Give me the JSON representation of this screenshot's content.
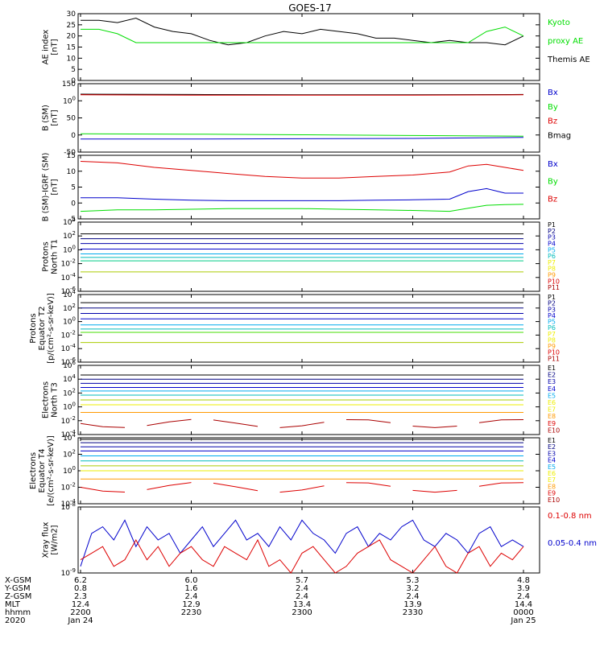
{
  "title": "GOES-17",
  "colors": {
    "black": "#000000",
    "green": "#00dd00",
    "blue": "#0000cc",
    "red": "#dd0000",
    "navy": "#000080",
    "darkblue": "#0000aa",
    "cyan": "#00aaee",
    "teal": "#00bbbb",
    "yellow": "#eeee00",
    "olive": "#aacc00",
    "orange": "#ff9900",
    "darkred": "#aa0000",
    "lime": "#44dd00",
    "greenish": "#00cc88"
  },
  "panels": [
    {
      "id": "ae",
      "ylabel": [
        "AE index",
        "[nT]"
      ],
      "yticks": [
        "0",
        "5",
        "10",
        "15",
        "20",
        "25",
        "30"
      ],
      "ylim": [
        0,
        30
      ],
      "legend": [
        {
          "text": "Kyoto",
          "color": "green"
        },
        {
          "text": "proxy AE",
          "color": "green"
        },
        {
          "text": "Themis AE",
          "color": "black"
        }
      ]
    },
    {
      "id": "bsm",
      "ylabel": [
        "B (SM)",
        "[nT]"
      ],
      "yticks": [
        "-50",
        "0",
        "50",
        "100",
        "150"
      ],
      "ylim": [
        -60,
        150
      ],
      "legend": [
        {
          "text": "Bx",
          "color": "blue"
        },
        {
          "text": "By",
          "color": "green"
        },
        {
          "text": "Bz",
          "color": "red"
        },
        {
          "text": "Bmag",
          "color": "black"
        }
      ]
    },
    {
      "id": "bigrf",
      "ylabel": [
        "B (SM)-IGRF (SM)",
        "[nT]"
      ],
      "yticks": [
        "-5",
        "0",
        "5",
        "10",
        "15"
      ],
      "ylim": [
        -5,
        16
      ],
      "legend": [
        {
          "text": "Bx",
          "color": "blue"
        },
        {
          "text": "By",
          "color": "green"
        },
        {
          "text": "Bz",
          "color": "red"
        }
      ]
    },
    {
      "id": "pt1",
      "ylabel": [
        "Protons",
        "North T1"
      ],
      "yticks": [
        "10-6",
        "10-4",
        "10-2",
        "100",
        "102",
        "104"
      ],
      "ylim": [
        -6,
        4
      ],
      "legend": [
        {
          "text": "P1",
          "color": "black"
        },
        {
          "text": "P2",
          "color": "navy"
        },
        {
          "text": "P3",
          "color": "darkblue"
        },
        {
          "text": "P4",
          "color": "blue"
        },
        {
          "text": "P5",
          "color": "cyan"
        },
        {
          "text": "P6",
          "color": "teal"
        },
        {
          "text": "P7",
          "color": "yellow"
        },
        {
          "text": "P8",
          "color": "yellow"
        },
        {
          "text": "P9",
          "color": "orange"
        },
        {
          "text": "P10",
          "color": "red"
        },
        {
          "text": "P11",
          "color": "darkred"
        }
      ]
    },
    {
      "id": "pt2",
      "ylabel": [
        "Protons",
        "Equator T2",
        "[p/(cm²-s-sr-keV)]"
      ],
      "yticks": [
        "10-6",
        "10-4",
        "10-2",
        "100",
        "102",
        "104"
      ],
      "ylim": [
        -6,
        4
      ],
      "legend": [
        {
          "text": "P1",
          "color": "black"
        },
        {
          "text": "P2",
          "color": "navy"
        },
        {
          "text": "P3",
          "color": "darkblue"
        },
        {
          "text": "P4",
          "color": "blue"
        },
        {
          "text": "P5",
          "color": "cyan"
        },
        {
          "text": "P6",
          "color": "teal"
        },
        {
          "text": "P7",
          "color": "yellow"
        },
        {
          "text": "P8",
          "color": "yellow"
        },
        {
          "text": "P9",
          "color": "orange"
        },
        {
          "text": "P10",
          "color": "red"
        },
        {
          "text": "P11",
          "color": "darkred"
        }
      ]
    },
    {
      "id": "et3",
      "ylabel": [
        "Electrons",
        "North T3"
      ],
      "yticks": [
        "10-4",
        "10-2",
        "100",
        "102",
        "104",
        "106"
      ],
      "ylim": [
        -4,
        6
      ],
      "legend": [
        {
          "text": "E1",
          "color": "black"
        },
        {
          "text": "E2",
          "color": "navy"
        },
        {
          "text": "E3",
          "color": "darkblue"
        },
        {
          "text": "E4",
          "color": "blue"
        },
        {
          "text": "E5",
          "color": "cyan"
        },
        {
          "text": "E6",
          "color": "yellow"
        },
        {
          "text": "E7",
          "color": "yellow"
        },
        {
          "text": "E8",
          "color": "orange"
        },
        {
          "text": "E9",
          "color": "red"
        },
        {
          "text": "E10",
          "color": "darkred"
        }
      ]
    },
    {
      "id": "et4",
      "ylabel": [
        "Electrons",
        "Equator T4",
        "[e/(cm²-s-sr-keV)]"
      ],
      "yticks": [
        "10-4",
        "10-2",
        "100",
        "102",
        "104"
      ],
      "ylim": [
        -4,
        4
      ],
      "legend": [
        {
          "text": "E1",
          "color": "black"
        },
        {
          "text": "E2",
          "color": "navy"
        },
        {
          "text": "E3",
          "color": "darkblue"
        },
        {
          "text": "E4",
          "color": "blue"
        },
        {
          "text": "E5",
          "color": "cyan"
        },
        {
          "text": "E6",
          "color": "yellow"
        },
        {
          "text": "E7",
          "color": "yellow"
        },
        {
          "text": "E8",
          "color": "orange"
        },
        {
          "text": "E9",
          "color": "red"
        },
        {
          "text": "E10",
          "color": "darkred"
        }
      ]
    },
    {
      "id": "xray",
      "ylabel": [
        "Xray flux",
        "[W/m2]"
      ],
      "yticks": [
        "10-9",
        "10-8"
      ],
      "ylim": [
        -9,
        -8
      ],
      "legend": [
        {
          "text": "0.1-0.8 nm",
          "color": "red"
        },
        {
          "text": "0.05-0.4 nm",
          "color": "blue"
        }
      ]
    }
  ],
  "footer": {
    "row_labels": [
      "X-GSM",
      "Y-GSM",
      "Z-GSM",
      "MLT",
      "hhmm",
      "2020"
    ],
    "columns": [
      [
        "6.2",
        "0.8",
        "2.3",
        "12.4",
        "2200",
        "Jan 24"
      ],
      [
        "6.0",
        "1.6",
        "2.4",
        "12.9",
        "2230",
        ""
      ],
      [
        "5.7",
        "2.4",
        "2.4",
        "13.4",
        "2300",
        ""
      ],
      [
        "5.3",
        "3.2",
        "2.4",
        "13.9",
        "2330",
        ""
      ],
      [
        "4.8",
        "3.9",
        "2.4",
        "14.4",
        "0000",
        "Jan 25"
      ]
    ]
  },
  "chart_data": [
    {
      "type": "line",
      "panel": "ae",
      "x_minutes": [
        0,
        5,
        10,
        15,
        20,
        25,
        30,
        35,
        40,
        45,
        50,
        55,
        60,
        65,
        70,
        75,
        80,
        85,
        90,
        95,
        100,
        105,
        110,
        115,
        120
      ],
      "series": [
        {
          "name": "Themis AE",
          "color": "black",
          "values": [
            27,
            27,
            26,
            28,
            24,
            22,
            21,
            18,
            16,
            17,
            20,
            22,
            21,
            23,
            22,
            21,
            19,
            19,
            18,
            17,
            18,
            17,
            17,
            16,
            20
          ]
        },
        {
          "name": "Kyoto",
          "color": "green",
          "values": [
            23,
            23,
            21,
            17,
            17,
            17,
            17,
            17,
            17,
            17,
            17,
            17,
            17,
            17,
            17,
            17,
            17,
            17,
            17,
            17,
            17,
            17,
            22,
            24,
            20
          ]
        }
      ],
      "ylim": [
        0,
        30
      ]
    },
    {
      "type": "line",
      "panel": "bsm",
      "x_minutes": [
        0,
        30,
        60,
        90,
        120
      ],
      "series": [
        {
          "name": "Bmag",
          "color": "black",
          "values": [
            118,
            117,
            116,
            116,
            117
          ]
        },
        {
          "name": "Bz",
          "color": "red",
          "values": [
            116,
            115,
            115,
            115,
            116
          ]
        },
        {
          "name": "By",
          "color": "green",
          "values": [
            -4,
            -5,
            -7,
            -9,
            -11
          ]
        },
        {
          "name": "Bx",
          "color": "blue",
          "values": [
            -20,
            -20,
            -19,
            -18,
            -15
          ]
        }
      ],
      "ylim": [
        -60,
        150
      ]
    },
    {
      "type": "line",
      "panel": "bigrf",
      "x_minutes": [
        0,
        10,
        20,
        30,
        40,
        50,
        60,
        70,
        80,
        90,
        100,
        105,
        110,
        115,
        120
      ],
      "series": [
        {
          "name": "Bz",
          "color": "red",
          "values": [
            14,
            13.5,
            12,
            11,
            10,
            9,
            8.5,
            8.5,
            9,
            9.5,
            10.5,
            12.5,
            13,
            12,
            11
          ]
        },
        {
          "name": "Bx",
          "color": "blue",
          "values": [
            2,
            2,
            1.5,
            1.2,
            1,
            1,
            1,
            1,
            1.2,
            1.3,
            1.5,
            4,
            5,
            3.5,
            3.5
          ]
        },
        {
          "name": "By",
          "color": "green",
          "values": [
            -2.5,
            -2,
            -2,
            -1.8,
            -1.6,
            -1.6,
            -1.6,
            -1.8,
            -2,
            -2.2,
            -2.5,
            -1.5,
            -0.5,
            -0.3,
            -0.2
          ]
        }
      ],
      "ylim": [
        -5,
        16
      ]
    },
    {
      "type": "line",
      "panel": "pt1",
      "yscale": "log10",
      "levels": [
        {
          "name": "P1",
          "color": "black",
          "value": 2.3
        },
        {
          "name": "P2",
          "color": "navy",
          "value": 1.6
        },
        {
          "name": "P3",
          "color": "darkblue",
          "value": 0.9
        },
        {
          "name": "P4",
          "color": "blue",
          "value": 0.1
        },
        {
          "name": "P5",
          "color": "cyan",
          "value": -0.6
        },
        {
          "name": "P6",
          "color": "teal",
          "value": -1.1
        },
        {
          "name": "P7",
          "color": "greenish",
          "value": -1.6
        },
        {
          "name": "P8",
          "color": "olive",
          "value": -3.2
        }
      ],
      "ylim": [
        -6,
        4
      ]
    },
    {
      "type": "line",
      "panel": "pt2",
      "yscale": "log10",
      "levels": [
        {
          "name": "P1",
          "color": "black",
          "value": 2.8
        },
        {
          "name": "P2",
          "color": "navy",
          "value": 2.0
        },
        {
          "name": "P3",
          "color": "darkblue",
          "value": 1.2
        },
        {
          "name": "P4",
          "color": "blue",
          "value": 0.4
        },
        {
          "name": "P5",
          "color": "cyan",
          "value": -0.5
        },
        {
          "name": "P6",
          "color": "teal",
          "value": -1.1
        },
        {
          "name": "P7",
          "color": "lime",
          "value": -1.6
        },
        {
          "name": "P8",
          "color": "olive",
          "value": -3.1
        }
      ],
      "ylim": [
        -6,
        4
      ]
    },
    {
      "type": "line",
      "panel": "et3",
      "yscale": "log10",
      "levels": [
        {
          "name": "E1",
          "color": "black",
          "value": 4.6
        },
        {
          "name": "E2",
          "color": "navy",
          "value": 4.0
        },
        {
          "name": "E3",
          "color": "darkblue",
          "value": 3.4
        },
        {
          "name": "E4",
          "color": "blue",
          "value": 2.8
        },
        {
          "name": "E5",
          "color": "cyan",
          "value": 2.3
        },
        {
          "name": "E6",
          "color": "teal",
          "value": 1.7
        },
        {
          "name": "E7",
          "color": "olive",
          "value": 1.0
        },
        {
          "name": "E8",
          "color": "yellow",
          "value": 0.3
        },
        {
          "name": "E9",
          "color": "orange",
          "value": -0.8
        }
      ],
      "noisy": {
        "name": "E10",
        "color": "darkred",
        "mean": -2.4
      },
      "ylim": [
        -4,
        6
      ]
    },
    {
      "type": "line",
      "panel": "et4",
      "yscale": "log10",
      "levels": [
        {
          "name": "E1",
          "color": "black",
          "value": 3.8
        },
        {
          "name": "E2",
          "color": "navy",
          "value": 3.4
        },
        {
          "name": "E3",
          "color": "darkblue",
          "value": 2.9
        },
        {
          "name": "E4",
          "color": "blue",
          "value": 2.4
        },
        {
          "name": "E5",
          "color": "cyan",
          "value": 1.8
        },
        {
          "name": "E6",
          "color": "teal",
          "value": 1.2
        },
        {
          "name": "E7",
          "color": "olive",
          "value": 0.6
        },
        {
          "name": "E8",
          "color": "yellow",
          "value": 0.0
        },
        {
          "name": "E9",
          "color": "orange",
          "value": -1.0
        }
      ],
      "noisy": {
        "name": "E10",
        "color": "red",
        "mean": -2.0
      },
      "ylim": [
        -4,
        4
      ]
    },
    {
      "type": "line",
      "panel": "xray",
      "yscale": "log10",
      "x_minutes": [
        0,
        3,
        6,
        9,
        12,
        15,
        18,
        21,
        24,
        27,
        30,
        33,
        36,
        39,
        42,
        45,
        48,
        51,
        54,
        57,
        60,
        63,
        66,
        69,
        72,
        75,
        78,
        81,
        84,
        87,
        90,
        93,
        96,
        99,
        102,
        105,
        108,
        111,
        114,
        117,
        120
      ],
      "series": [
        {
          "name": "0.05-0.4 nm",
          "color": "blue",
          "values": [
            -8.9,
            -8.4,
            -8.3,
            -8.5,
            -8.2,
            -8.6,
            -8.3,
            -8.5,
            -8.4,
            -8.7,
            -8.5,
            -8.3,
            -8.6,
            -8.4,
            -8.2,
            -8.5,
            -8.4,
            -8.6,
            -8.3,
            -8.5,
            -8.2,
            -8.4,
            -8.5,
            -8.7,
            -8.4,
            -8.3,
            -8.6,
            -8.4,
            -8.5,
            -8.3,
            -8.2,
            -8.5,
            -8.6,
            -8.4,
            -8.5,
            -8.7,
            -8.4,
            -8.3,
            -8.6,
            -8.5,
            -8.6
          ]
        },
        {
          "name": "0.1-0.8 nm",
          "color": "red",
          "values": [
            -8.8,
            -8.7,
            -8.6,
            -8.9,
            -8.8,
            -8.5,
            -8.8,
            -8.6,
            -8.9,
            -8.7,
            -8.6,
            -8.8,
            -8.9,
            -8.6,
            -8.7,
            -8.8,
            -8.5,
            -8.9,
            -8.8,
            -9.0,
            -8.7,
            -8.6,
            -8.8,
            -9.0,
            -8.9,
            -8.7,
            -8.6,
            -8.5,
            -8.8,
            -8.9,
            -9.0,
            -8.8,
            -8.6,
            -8.9,
            -9.0,
            -8.7,
            -8.6,
            -8.9,
            -8.7,
            -8.8,
            -8.6
          ]
        }
      ],
      "ylim": [
        -9,
        -8
      ]
    }
  ]
}
